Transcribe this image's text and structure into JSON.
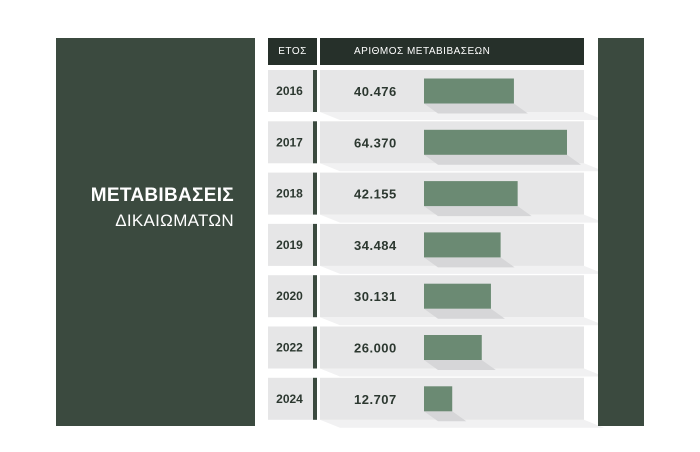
{
  "panel": {
    "title": "ΜΕΤΑΒΙΒΑΣΕΙΣ",
    "subtitle": "ΔΙΚΑΙΩΜΑΤΩΝ"
  },
  "header": {
    "year_label": "ΕΤΟΣ",
    "count_label": "ΑΡΙΘΜΟΣ ΜΕΤΑΒΙΒΑΣΕΩΝ"
  },
  "colors": {
    "panel": "#3b4a3f",
    "header": "#26302a",
    "bar": "#6b8a73",
    "row_bg": "#e6e6e7"
  },
  "chart_data": {
    "type": "bar",
    "orientation": "horizontal",
    "categories": [
      "2016",
      "2017",
      "2018",
      "2019",
      "2020",
      "2022",
      "2024"
    ],
    "values": [
      40476,
      64370,
      42155,
      34484,
      30131,
      26000,
      12707
    ],
    "value_labels": [
      "40.476",
      "64.370",
      "42.155",
      "34.484",
      "30.131",
      "26.000",
      "12.707"
    ],
    "title": "ΜΕΤΑΒΙΒΑΣΕΙΣ ΔΙΚΑΙΩΜΑΤΩΝ",
    "xlabel": "ΑΡΙΘΜΟΣ ΜΕΤΑΒΙΒΑΣΕΩΝ",
    "ylabel": "ΕΤΟΣ",
    "xlim": [
      0,
      64370
    ],
    "grid": false,
    "legend": "none"
  }
}
